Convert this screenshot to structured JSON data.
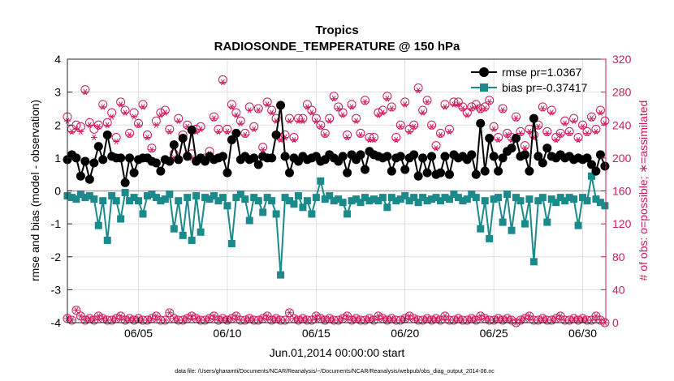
{
  "chart_data": {
    "type": "line",
    "title": "Tropics",
    "subtitle": "RADIOSONDE_TEMPERATURE @ 150 hPa",
    "xlabel": "Jun.01,2014 00:00:00 start",
    "ylabel_left": "rmse and bias (model - observation)",
    "ylabel_right": "# of obs: o=possible; ∗=assimilated",
    "footer": "data file: /Users/gharamti/Documents/NCAR/Reanalysis/~/Documents/NCAR/Reanalysis/webpub/obs_diag_output_2014-06.nc",
    "xlim": [
      1.0,
      31.3
    ],
    "ylim_left": [
      -4,
      4
    ],
    "ylim_right": [
      0,
      320
    ],
    "xticks": [
      5,
      10,
      15,
      20,
      25,
      30
    ],
    "xtick_labels": [
      "06/05",
      "06/10",
      "06/15",
      "06/20",
      "06/25",
      "06/30"
    ],
    "yticks_left": [
      4,
      3,
      2,
      1,
      0,
      -1,
      -2,
      -3,
      -4
    ],
    "yticks_right": [
      320,
      280,
      240,
      200,
      160,
      120,
      80,
      40,
      0
    ],
    "grid": true,
    "legend_position": "top-right",
    "x": [
      1.0,
      1.25,
      1.5,
      1.75,
      2.0,
      2.25,
      2.5,
      2.75,
      3.0,
      3.25,
      3.5,
      3.75,
      4.0,
      4.25,
      4.5,
      4.75,
      5.0,
      5.25,
      5.5,
      5.75,
      6.0,
      6.25,
      6.5,
      6.75,
      7.0,
      7.25,
      7.5,
      7.75,
      8.0,
      8.25,
      8.5,
      8.75,
      9.0,
      9.25,
      9.5,
      9.75,
      10.0,
      10.25,
      10.5,
      10.75,
      11.0,
      11.25,
      11.5,
      11.75,
      12.0,
      12.25,
      12.5,
      12.75,
      13.0,
      13.25,
      13.5,
      13.75,
      14.0,
      14.25,
      14.5,
      14.75,
      15.0,
      15.25,
      15.5,
      15.75,
      16.0,
      16.25,
      16.5,
      16.75,
      17.0,
      17.25,
      17.5,
      17.75,
      18.0,
      18.25,
      18.5,
      18.75,
      19.0,
      19.25,
      19.5,
      19.75,
      20.0,
      20.25,
      20.5,
      20.75,
      21.0,
      21.25,
      21.5,
      21.75,
      22.0,
      22.25,
      22.5,
      22.75,
      23.0,
      23.25,
      23.5,
      23.75,
      24.0,
      24.25,
      24.5,
      24.75,
      25.0,
      25.25,
      25.5,
      25.75,
      26.0,
      26.25,
      26.5,
      26.75,
      27.0,
      27.25,
      27.5,
      27.75,
      28.0,
      28.25,
      28.5,
      28.75,
      29.0,
      29.25,
      29.5,
      29.75,
      30.0,
      30.25,
      30.5,
      30.75,
      31.0,
      31.25
    ],
    "series": [
      {
        "name": "rmse",
        "legend": "rmse pr=1.0367",
        "color": "#000000",
        "marker": "circle",
        "values": [
          0.95,
          1.1,
          1.0,
          0.45,
          0.9,
          0.35,
          0.85,
          1.35,
          0.95,
          1.7,
          1.05,
          1.0,
          1.0,
          0.25,
          1.0,
          0.55,
          0.95,
          1.0,
          1.0,
          0.9,
          0.85,
          0.6,
          0.95,
          0.9,
          1.4,
          0.95,
          1.6,
          1.05,
          1.85,
          0.9,
          1.0,
          0.9,
          1.05,
          0.95,
          1.0,
          1.05,
          0.55,
          1.55,
          1.75,
          0.95,
          1.05,
          0.95,
          1.0,
          0.8,
          1.05,
          1.0,
          1.0,
          1.7,
          2.6,
          1.05,
          0.55,
          1.0,
          0.9,
          1.05,
          0.95,
          1.0,
          1.05,
          0.9,
          0.95,
          1.1,
          1.0,
          0.9,
          1.05,
          0.55,
          1.1,
          0.95,
          1.1,
          0.65,
          1.2,
          1.1,
          1.05,
          1.0,
          1.05,
          0.6,
          1.0,
          1.05,
          0.65,
          1.0,
          1.1,
          0.45,
          1.0,
          0.55,
          1.05,
          0.5,
          0.55,
          1.05,
          0.5,
          1.1,
          1.0,
          1.05,
          0.95,
          1.1,
          0.5,
          2.05,
          0.6,
          1.6,
          1.05,
          0.6,
          1.0,
          1.2,
          1.3,
          1.6,
          1.05,
          1.1,
          0.6,
          2.2,
          1.05,
          0.85,
          1.3,
          1.05,
          1.0,
          1.1,
          1.0,
          1.05,
          0.95,
          1.0,
          0.95,
          1.0,
          0.8,
          0.6,
          1.1,
          0.75
        ],
        "bias": null
      },
      {
        "name": "bias",
        "legend": "bias pr=-0.37417",
        "color": "#1a8a8a",
        "marker": "square",
        "values": [
          -0.15,
          -0.2,
          -0.25,
          -0.1,
          -0.2,
          -0.15,
          -0.25,
          -1.05,
          -0.3,
          -1.5,
          -0.15,
          -0.3,
          -0.85,
          -0.05,
          -0.3,
          -0.2,
          -0.3,
          -0.7,
          -0.15,
          -0.1,
          -0.2,
          -0.3,
          -0.25,
          -0.1,
          -1.15,
          -0.3,
          -1.35,
          -0.2,
          -1.5,
          -0.15,
          -1.25,
          -0.2,
          -0.25,
          -0.15,
          -0.3,
          -0.2,
          -0.45,
          -1.6,
          -0.2,
          -0.1,
          -0.25,
          -0.9,
          -0.2,
          -0.3,
          -0.65,
          -0.2,
          -0.3,
          -0.7,
          -2.55,
          -0.2,
          -0.3,
          -0.4,
          -0.15,
          -0.5,
          -0.3,
          -0.7,
          -0.2,
          0.3,
          -0.25,
          -0.15,
          -0.3,
          -0.25,
          -0.35,
          -0.7,
          -0.3,
          -0.25,
          -0.35,
          -0.2,
          -0.3,
          -0.25,
          -0.3,
          -0.2,
          -0.5,
          -0.2,
          -0.3,
          -0.25,
          -0.15,
          -0.3,
          -0.2,
          -0.35,
          -0.2,
          -0.3,
          -0.25,
          -0.2,
          -0.3,
          -0.2,
          -0.25,
          -0.1,
          -0.2,
          -0.3,
          -0.25,
          -0.1,
          -0.2,
          -1.15,
          -0.3,
          -1.45,
          -0.25,
          -0.2,
          -0.95,
          -0.1,
          -1.2,
          -0.2,
          -0.3,
          -1.0,
          -0.25,
          -2.15,
          -0.3,
          -0.2,
          -0.95,
          -0.25,
          -0.35,
          -0.2,
          -0.3,
          -0.2,
          -0.25,
          -1.05,
          -0.2,
          -0.3,
          0.45,
          -0.25,
          -0.35,
          -0.45
        ]
      },
      {
        "name": "obs_possible",
        "color": "#cc1a5a",
        "marker": "open-circle",
        "axis": "right",
        "values": [
          250,
          235,
          240,
          238,
          283,
          243,
          235,
          240,
          265,
          243,
          255,
          225,
          268,
          258,
          230,
          255,
          242,
          265,
          228,
          212,
          245,
          255,
          258,
          235,
          205,
          248,
          228,
          240,
          205,
          235,
          238,
          200,
          208,
          250,
          235,
          295,
          235,
          265,
          255,
          245,
          230,
          262,
          238,
          260,
          213,
          268,
          258,
          248,
          225,
          228,
          248,
          225,
          248,
          248,
          265,
          258,
          248,
          240,
          230,
          248,
          275,
          262,
          255,
          228,
          265,
          248,
          230,
          270,
          225,
          225,
          255,
          258,
          275,
          262,
          225,
          240,
          268,
          235,
          240,
          285,
          258,
          270,
          240,
          215,
          230,
          265,
          235,
          268,
          268,
          262,
          255,
          262,
          265,
          260,
          262,
          270,
          238,
          225,
          260,
          230,
          225,
          250,
          232,
          215,
          235,
          228,
          240,
          262,
          232,
          258,
          225,
          230,
          245,
          232,
          248,
          225,
          240,
          232,
          250,
          235,
          258,
          245
        ],
        "assimilated": [
          245,
          232,
          235,
          232,
          280,
          240,
          225,
          238,
          262,
          240,
          250,
          220,
          265,
          255,
          228,
          250,
          240,
          262,
          225,
          210,
          240,
          252,
          255,
          232,
          200,
          245,
          225,
          238,
          200,
          232,
          235,
          198,
          205,
          248,
          232,
          292,
          232,
          262,
          252,
          242,
          228,
          258,
          235,
          258,
          210,
          265,
          255,
          245,
          222,
          225,
          245,
          222,
          245,
          245,
          262,
          255,
          245,
          238,
          228,
          245,
          272,
          260,
          252,
          225,
          262,
          245,
          228,
          268,
          222,
          222,
          252,
          255,
          272,
          260,
          222,
          238,
          265,
          232,
          238,
          282,
          255,
          268,
          238,
          212,
          228,
          262,
          232,
          265,
          265,
          260,
          252,
          260,
          262,
          258,
          260,
          268,
          235,
          222,
          258,
          228,
          222,
          248,
          230,
          212,
          232,
          225,
          238,
          260,
          230,
          255,
          222,
          228,
          242,
          230,
          245,
          222,
          238,
          230,
          248,
          232,
          255,
          242
        ]
      },
      {
        "name": "obs_possible_low",
        "color": "#cc1a5a",
        "marker": "open-circle",
        "axis": "right",
        "values": [
          5,
          3,
          15,
          8,
          3,
          5,
          3,
          8,
          5,
          3,
          3,
          5,
          8,
          3,
          5,
          3,
          5,
          3,
          3,
          5,
          8,
          3,
          3,
          12,
          5,
          3,
          3,
          5,
          8,
          5,
          3,
          3,
          5,
          8,
          3,
          5,
          3,
          5,
          8,
          3,
          3,
          5,
          3,
          3,
          5,
          8,
          3,
          5,
          3,
          3,
          12,
          5,
          3,
          5,
          3,
          3,
          8,
          5,
          3,
          5,
          3,
          3,
          5,
          8,
          3,
          5,
          3,
          3,
          5,
          3,
          8,
          5,
          3,
          5,
          3,
          3,
          5,
          8,
          5,
          3,
          3,
          5,
          3,
          5,
          3,
          8,
          3,
          3,
          5,
          3,
          3,
          5,
          3,
          8,
          5,
          3,
          3,
          5,
          3,
          5,
          3,
          0,
          3,
          5,
          8,
          3,
          3,
          5,
          3,
          3,
          5,
          8,
          3,
          3,
          5,
          3,
          5,
          3,
          3,
          8,
          3,
          0
        ]
      }
    ]
  }
}
